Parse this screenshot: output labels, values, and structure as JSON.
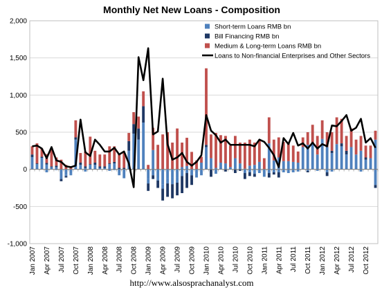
{
  "chart_data": {
    "type": "bar",
    "title": "Monthly Net New Loans - Composition",
    "footer": "http://www.alsosprachanalyst.com",
    "ylim": [
      -1000,
      2000
    ],
    "yticks": [
      -1000,
      -500,
      0,
      500,
      1000,
      1500,
      2000
    ],
    "ytick_labels": [
      "-1,000",
      "-500",
      "0",
      "500",
      "1,000",
      "1,500",
      "2,000"
    ],
    "xtick_labels": [
      "Jan 2007",
      "Apr 2007",
      "Jul 2007",
      "Oct 2007",
      "Jan 2008",
      "Apr 2008",
      "Jul 2008",
      "Oct 2008",
      "Jan 2009",
      "Apr 2009",
      "Jul 2009",
      "Oct 2009",
      "Jan 2010",
      "Apr 2010",
      "Jul 2010",
      "Oct 2010",
      "Jan 2011",
      "Apr 2011",
      "Jul 2011",
      "Oct 2011",
      "Jan 2012",
      "Apr 2012",
      "Jul 2012",
      "Oct 2012"
    ],
    "xtick_every": 3,
    "grid": "horizontal",
    "legend_position": "top-right",
    "stacked": true,
    "series": [
      {
        "name": "Short-term Loans RMB bn",
        "type": "bar",
        "color": "#4f81bd",
        "values": [
          165,
          70,
          155,
          65,
          30,
          30,
          -130,
          -70,
          -60,
          400,
          60,
          20,
          60,
          60,
          20,
          20,
          70,
          80,
          -80,
          -120,
          250,
          480,
          400,
          630,
          -130,
          260,
          -120,
          -200,
          -120,
          -110,
          -110,
          30,
          45,
          5,
          -50,
          90,
          300,
          150,
          20,
          90,
          80,
          30,
          150,
          80,
          10,
          50,
          60,
          100,
          -100,
          350,
          120,
          160,
          110,
          110,
          100,
          90,
          300,
          330,
          350,
          200,
          410,
          300,
          220,
          340,
          310,
          200,
          300,
          200,
          250,
          130,
          150,
          400
        ],
        "neg": [
          0,
          0,
          0,
          -40,
          0,
          -10,
          0,
          -20,
          -20,
          0,
          0,
          -30,
          0,
          0,
          0,
          0,
          -20,
          -10,
          0,
          0,
          0,
          0,
          0,
          0,
          -60,
          -80,
          -30,
          -60,
          -70,
          -90,
          -70,
          -90,
          -50,
          -80,
          -60,
          -80,
          0,
          0,
          -60,
          0,
          0,
          0,
          0,
          0,
          -50,
          -40,
          -60,
          -50,
          0,
          -50,
          -40,
          -40,
          -40,
          -50,
          -40,
          -30,
          0,
          -20,
          0,
          -20,
          0,
          -40,
          -30,
          0,
          0,
          0,
          0,
          0,
          -30,
          0,
          0,
          -210
        ]
      },
      {
        "name": "Bill Financing RMB bn",
        "type": "bar",
        "color": "#1f3864",
        "values": [
          35,
          10,
          15,
          20,
          10,
          20,
          -30,
          -20,
          0,
          30,
          30,
          20,
          10,
          30,
          20,
          20,
          10,
          20,
          20,
          20,
          130,
          130,
          150,
          220,
          -100,
          -50,
          -100,
          -160,
          -180,
          -190,
          -170,
          -230,
          -200,
          -130,
          0,
          0,
          30,
          -100,
          0,
          0,
          -30,
          0,
          -50,
          -20,
          -80,
          -50,
          -40,
          0,
          0,
          -60,
          -30,
          -70,
          0,
          0,
          0,
          0,
          0,
          -20,
          0,
          0,
          0,
          -50,
          30,
          0,
          40,
          50,
          0,
          0,
          0,
          30,
          0,
          -40
        ]
      },
      {
        "name": "Medium & Long-term Loans RMB bn",
        "type": "bar",
        "color": "#c0504d",
        "values": [
          110,
          270,
          110,
          120,
          240,
          110,
          130,
          60,
          40,
          230,
          130,
          200,
          370,
          160,
          160,
          160,
          230,
          210,
          190,
          200,
          110,
          160,
          160,
          200,
          60,
          300,
          330,
          470,
          500,
          360,
          550,
          330,
          380,
          230,
          120,
          80,
          1030,
          320,
          470,
          370,
          370,
          290,
          300,
          280,
          350,
          350,
          300,
          300,
          150,
          350,
          280,
          270,
          260,
          240,
          220,
          150,
          130,
          170,
          250,
          250,
          250,
          200,
          250,
          360,
          330,
          200,
          250,
          200,
          200,
          160,
          170,
          120
        ]
      },
      {
        "name": "Loans to Non-financial Enterprises and Other Sectors",
        "type": "line",
        "color": "#000000",
        "values": [
          310,
          320,
          280,
          150,
          300,
          120,
          100,
          40,
          30,
          50,
          670,
          230,
          180,
          400,
          330,
          240,
          240,
          290,
          200,
          240,
          80,
          -240,
          1510,
          1200,
          1630,
          470,
          510,
          1220,
          340,
          130,
          160,
          220,
          100,
          50,
          100,
          190,
          730,
          520,
          460,
          360,
          400,
          330,
          330,
          330,
          330,
          330,
          310,
          400,
          370,
          290,
          190,
          30,
          420,
          340,
          490,
          320,
          350,
          280,
          360,
          280,
          340,
          310,
          590,
          580,
          650,
          730,
          520,
          560,
          680,
          360,
          420,
          290
        ]
      }
    ]
  }
}
